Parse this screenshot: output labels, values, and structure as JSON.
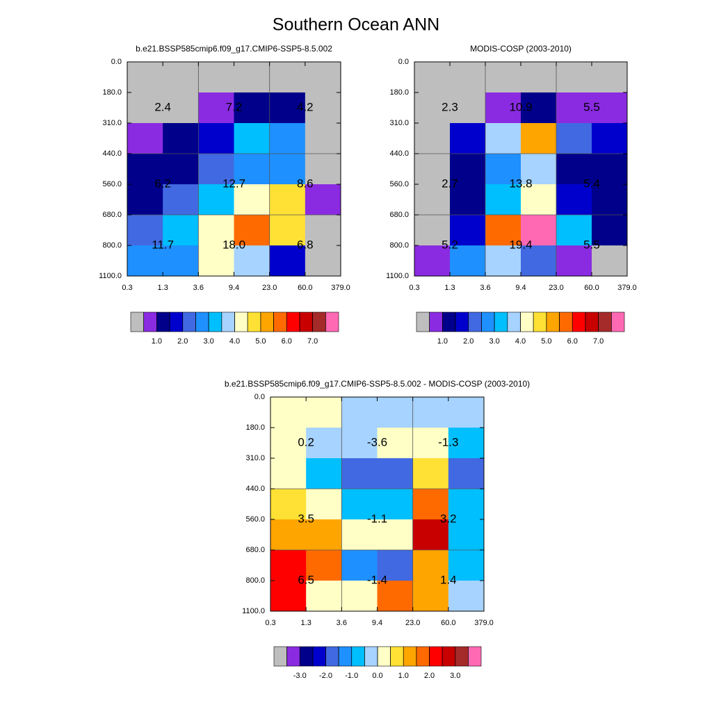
{
  "title": "Southern Ocean ANN",
  "chart_data": [
    {
      "type": "heatmap",
      "title": "b.e21.BSSP585cmip6.f09_g17.CMIP6-SSP5-8.5.002",
      "x_edges": [
        {
          "value": 0.3,
          "label": "0.3"
        },
        {
          "value": 1.3,
          "label": "1.3"
        },
        {
          "value": 3.6,
          "label": "3.6"
        },
        {
          "value": 9.4,
          "label": "9.4"
        },
        {
          "value": 23,
          "label": "23.0"
        },
        {
          "value": 60,
          "label": "60.0"
        },
        {
          "value": 379,
          "label": "379.0"
        }
      ],
      "y_edges": [
        {
          "value": 0,
          "label": "0.0"
        },
        {
          "value": 180,
          "label": "180.0"
        },
        {
          "value": 310,
          "label": "310.0"
        },
        {
          "value": 440,
          "label": "440.0"
        },
        {
          "value": 560,
          "label": "560.0"
        },
        {
          "value": 680,
          "label": "680.0"
        },
        {
          "value": 800,
          "label": "800.0"
        },
        {
          "value": 1100,
          "label": "1100.0"
        }
      ],
      "values": [
        [
          0.25,
          0.25,
          0.25,
          0.25,
          0.25,
          0.25
        ],
        [
          0.25,
          0.25,
          0.75,
          1.25,
          1.25,
          0.25
        ],
        [
          0.75,
          1.25,
          1.75,
          3.25,
          2.75,
          0.25
        ],
        [
          1.25,
          1.25,
          2.25,
          2.75,
          2.75,
          0.25
        ],
        [
          1.25,
          2.25,
          3.25,
          4.25,
          4.75,
          0.75
        ],
        [
          2.25,
          3.25,
          4.25,
          5.75,
          4.75,
          0.25
        ],
        [
          2.75,
          2.75,
          4.25,
          3.75,
          1.75,
          0.25
        ]
      ],
      "annotations": [
        [
          "2.4",
          "7.2",
          "4.2"
        ],
        [
          "6.2",
          "12.7",
          "8.6"
        ],
        [
          "11.7",
          "18.0",
          "6.8"
        ]
      ],
      "colorbar": {
        "levels": [
          0.5,
          1,
          1.5,
          2,
          2.5,
          3,
          3.5,
          4,
          4.5,
          5,
          5.5,
          6,
          6.5,
          7,
          7.5
        ],
        "colors": [
          "#bebebe",
          "#8a2be2",
          "#00008b",
          "#0000cd",
          "#4169e1",
          "#1e90ff",
          "#00bfff",
          "#a6d3ff",
          "#ffffc6",
          "#ffe135",
          "#ffa500",
          "#ff6a00",
          "#ff0000",
          "#c80000",
          "#a52a2a",
          "#ff69b4"
        ],
        "ticks": [
          {
            "value": 1,
            "label": "1.0"
          },
          {
            "value": 2,
            "label": "2.0"
          },
          {
            "value": 3,
            "label": "3.0"
          },
          {
            "value": 4,
            "label": "4.0"
          },
          {
            "value": 5,
            "label": "5.0"
          },
          {
            "value": 6,
            "label": "6.0"
          },
          {
            "value": 7,
            "label": "7.0"
          }
        ]
      }
    },
    {
      "type": "heatmap",
      "title": "MODIS-COSP (2003-2010)",
      "x_edges": [
        {
          "value": 0.3,
          "label": "0.3"
        },
        {
          "value": 1.3,
          "label": "1.3"
        },
        {
          "value": 3.6,
          "label": "3.6"
        },
        {
          "value": 9.4,
          "label": "9.4"
        },
        {
          "value": 23,
          "label": "23.0"
        },
        {
          "value": 60,
          "label": "60.0"
        },
        {
          "value": 379,
          "label": "379.0"
        }
      ],
      "y_edges": [
        {
          "value": 0,
          "label": "0.0"
        },
        {
          "value": 180,
          "label": "180.0"
        },
        {
          "value": 310,
          "label": "310.0"
        },
        {
          "value": 440,
          "label": "440.0"
        },
        {
          "value": 560,
          "label": "560.0"
        },
        {
          "value": 680,
          "label": "680.0"
        },
        {
          "value": 800,
          "label": "800.0"
        },
        {
          "value": 1100,
          "label": "1100.0"
        }
      ],
      "values": [
        [
          0.25,
          0.25,
          0.25,
          0.25,
          0.25,
          0.25
        ],
        [
          0.25,
          0.25,
          0.75,
          1.25,
          0.75,
          0.75
        ],
        [
          0.25,
          1.75,
          3.75,
          5.25,
          2.25,
          1.75
        ],
        [
          0.25,
          1.25,
          2.75,
          3.75,
          1.25,
          1.25
        ],
        [
          0.25,
          1.25,
          3.25,
          4.25,
          1.75,
          1.25
        ],
        [
          0.25,
          1.75,
          5.75,
          7.75,
          3.25,
          1.25
        ],
        [
          0.75,
          2.75,
          3.75,
          2.25,
          0.75,
          0.25
        ]
      ],
      "annotations": [
        [
          "2.3",
          "10.9",
          "5.5"
        ],
        [
          "2.7",
          "13.8",
          "5.4"
        ],
        [
          "5.2",
          "19.4",
          "5.5"
        ]
      ],
      "colorbar": {
        "levels": [
          0.5,
          1,
          1.5,
          2,
          2.5,
          3,
          3.5,
          4,
          4.5,
          5,
          5.5,
          6,
          6.5,
          7,
          7.5
        ],
        "colors": [
          "#bebebe",
          "#8a2be2",
          "#00008b",
          "#0000cd",
          "#4169e1",
          "#1e90ff",
          "#00bfff",
          "#a6d3ff",
          "#ffffc6",
          "#ffe135",
          "#ffa500",
          "#ff6a00",
          "#ff0000",
          "#c80000",
          "#a52a2a",
          "#ff69b4"
        ],
        "ticks": [
          {
            "value": 1,
            "label": "1.0"
          },
          {
            "value": 2,
            "label": "2.0"
          },
          {
            "value": 3,
            "label": "3.0"
          },
          {
            "value": 4,
            "label": "4.0"
          },
          {
            "value": 5,
            "label": "5.0"
          },
          {
            "value": 6,
            "label": "6.0"
          },
          {
            "value": 7,
            "label": "7.0"
          }
        ]
      }
    },
    {
      "type": "heatmap",
      "title": "b.e21.BSSP585cmip6.f09_g17.CMIP6-SSP5-8.5.002 - MODIS-COSP (2003-2010)",
      "x_edges": [
        {
          "value": 0.3,
          "label": "0.3"
        },
        {
          "value": 1.3,
          "label": "1.3"
        },
        {
          "value": 3.6,
          "label": "3.6"
        },
        {
          "value": 9.4,
          "label": "9.4"
        },
        {
          "value": 23,
          "label": "23.0"
        },
        {
          "value": 60,
          "label": "60.0"
        },
        {
          "value": 379,
          "label": "379.0"
        }
      ],
      "y_edges": [
        {
          "value": 0,
          "label": "0.0"
        },
        {
          "value": 180,
          "label": "180.0"
        },
        {
          "value": 310,
          "label": "310.0"
        },
        {
          "value": 440,
          "label": "440.0"
        },
        {
          "value": 560,
          "label": "560.0"
        },
        {
          "value": 680,
          "label": "680.0"
        },
        {
          "value": 800,
          "label": "800.0"
        },
        {
          "value": 1100,
          "label": "1100.0"
        }
      ],
      "values": [
        [
          0.25,
          0.25,
          -0.25,
          -0.25,
          -0.25,
          -0.25
        ],
        [
          0.25,
          -0.25,
          -0.25,
          0.25,
          0.25,
          -0.75
        ],
        [
          0.25,
          -0.75,
          -1.75,
          -1.75,
          0.75,
          -1.75
        ],
        [
          0.75,
          0.25,
          -0.75,
          -0.75,
          1.75,
          -0.75
        ],
        [
          1.25,
          1.25,
          0.25,
          0.25,
          2.75,
          -0.75
        ],
        [
          2.25,
          1.75,
          -1.25,
          -1.75,
          1.25,
          -0.75
        ],
        [
          2.25,
          0.25,
          0.25,
          1.75,
          1.25,
          -0.25
        ]
      ],
      "annotations": [
        [
          "0.2",
          "-3.6",
          "-1.3"
        ],
        [
          "3.5",
          "-1.1",
          "3.2"
        ],
        [
          "6.5",
          "-1.4",
          "1.4"
        ]
      ],
      "colorbar": {
        "levels": [
          -3.5,
          -3,
          -2.5,
          -2,
          -1.5,
          -1,
          -0.5,
          0,
          0.5,
          1,
          1.5,
          2,
          2.5,
          3,
          3.5
        ],
        "colors": [
          "#bebebe",
          "#8a2be2",
          "#00008b",
          "#0000cd",
          "#4169e1",
          "#1e90ff",
          "#00bfff",
          "#a6d3ff",
          "#ffffc6",
          "#ffe135",
          "#ffa500",
          "#ff6a00",
          "#ff0000",
          "#c80000",
          "#a52a2a",
          "#ff69b4"
        ],
        "ticks": [
          {
            "value": -3,
            "label": "-3.0"
          },
          {
            "value": -2,
            "label": "-2.0"
          },
          {
            "value": -1,
            "label": "-1.0"
          },
          {
            "value": 0,
            "label": "0.0"
          },
          {
            "value": 1,
            "label": "1.0"
          },
          {
            "value": 2,
            "label": "2.0"
          },
          {
            "value": 3,
            "label": "3.0"
          }
        ]
      }
    }
  ]
}
